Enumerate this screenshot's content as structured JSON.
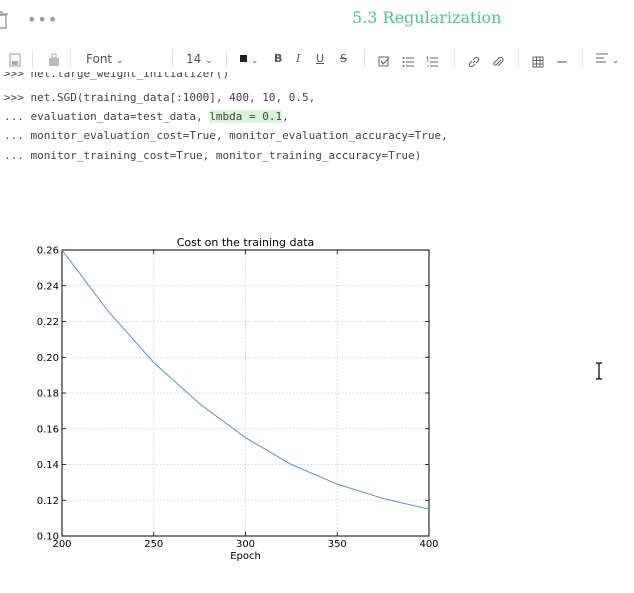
{
  "header": {
    "more_label": "•••",
    "title": "5.3 Regularization"
  },
  "toolbar": {
    "font_label": "Font",
    "font_size": "14",
    "bold": "B",
    "italic": "I",
    "underline": "U",
    "strike": "S"
  },
  "code": {
    "line0": ">>> net.large_weight_initializer()",
    "line1": ">>> net.SGD(training_data[:1000], 400, 10, 0.5,",
    "line2_pre": "... evaluation_data=test_data, ",
    "line2_hl": "lmbda = 0.1",
    "line2_post": ",",
    "line3": "... monitor_evaluation_cost=True, monitor_evaluation_accuracy=True,",
    "line4": "... monitor_training_cost=True, monitor_training_accuracy=True)"
  },
  "chart_data": {
    "type": "line",
    "title": "Cost on the training data",
    "xlabel": "Epoch",
    "ylabel": "",
    "xlim": [
      200,
      400
    ],
    "ylim": [
      0.1,
      0.26
    ],
    "xticks": [
      "200",
      "250",
      "300",
      "350",
      "400"
    ],
    "yticks": [
      "0.10",
      "0.12",
      "0.14",
      "0.16",
      "0.18",
      "0.20",
      "0.22",
      "0.24",
      "0.26"
    ],
    "grid": true,
    "line_color": "#5b8fc7",
    "series": [
      {
        "x": [
          200,
          225,
          250,
          275,
          300,
          325,
          350,
          375,
          400
        ],
        "values": [
          0.26,
          0.226,
          0.197,
          0.174,
          0.155,
          0.14,
          0.129,
          0.121,
          0.115
        ]
      }
    ]
  }
}
